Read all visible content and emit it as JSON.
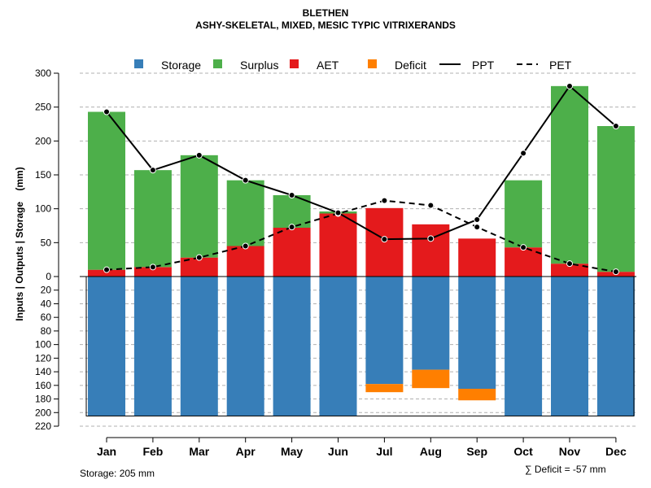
{
  "chart_data": {
    "type": "bar",
    "title": "BLETHEN",
    "subtitle": "ASHY-SKELETAL, MIXED, MESIC TYPIC VITRIXERANDS",
    "ylabel": "Inputs | Outputs | Storage    (mm)",
    "categories": [
      "Jan",
      "Feb",
      "Mar",
      "Apr",
      "May",
      "Jun",
      "Jul",
      "Aug",
      "Sep",
      "Oct",
      "Nov",
      "Dec"
    ],
    "ylim_top": [
      0,
      300
    ],
    "ylim_bottom": [
      0,
      220
    ],
    "yticks_top": [
      0,
      50,
      100,
      150,
      200,
      250,
      300
    ],
    "yticks_bottom": [
      20,
      40,
      60,
      80,
      100,
      120,
      140,
      160,
      180,
      200,
      220
    ],
    "legend": [
      {
        "key": "storage",
        "label": "Storage",
        "color": "#377EB8",
        "kind": "box"
      },
      {
        "key": "surplus",
        "label": "Surplus",
        "color": "#4DAF4A",
        "kind": "box"
      },
      {
        "key": "aet",
        "label": "AET",
        "color": "#E41A1C",
        "kind": "box"
      },
      {
        "key": "deficit",
        "label": "Deficit",
        "color": "#FF7F00",
        "kind": "box"
      },
      {
        "key": "ppt",
        "label": "PPT",
        "color": "#000000",
        "kind": "solid"
      },
      {
        "key": "pet",
        "label": "PET",
        "color": "#000000",
        "kind": "dashed"
      }
    ],
    "series": [
      {
        "name": "AET",
        "values": [
          10,
          14,
          28,
          45,
          72,
          93,
          101,
          77,
          56,
          43,
          19,
          7
        ]
      },
      {
        "name": "Surplus",
        "values": [
          233,
          143,
          151,
          97,
          48,
          3,
          0,
          0,
          0,
          99,
          262,
          215
        ]
      },
      {
        "name": "PPT",
        "values": [
          243,
          157,
          179,
          142,
          120,
          94,
          55,
          56,
          84,
          182,
          281,
          222
        ]
      },
      {
        "name": "PET",
        "values": [
          10,
          14,
          28,
          45,
          73,
          93,
          112,
          105,
          73,
          43,
          19,
          7
        ]
      },
      {
        "name": "Storage",
        "values": [
          205,
          205,
          205,
          205,
          205,
          205,
          158,
          137,
          165,
          205,
          205,
          205
        ]
      },
      {
        "name": "Deficit",
        "values": [
          0,
          0,
          0,
          0,
          0,
          0,
          12,
          27,
          17,
          0,
          0,
          0
        ]
      }
    ]
  },
  "footer": {
    "storage_note": "Storage: 205 mm",
    "deficit_note": "∑ Deficit = -57 mm"
  }
}
